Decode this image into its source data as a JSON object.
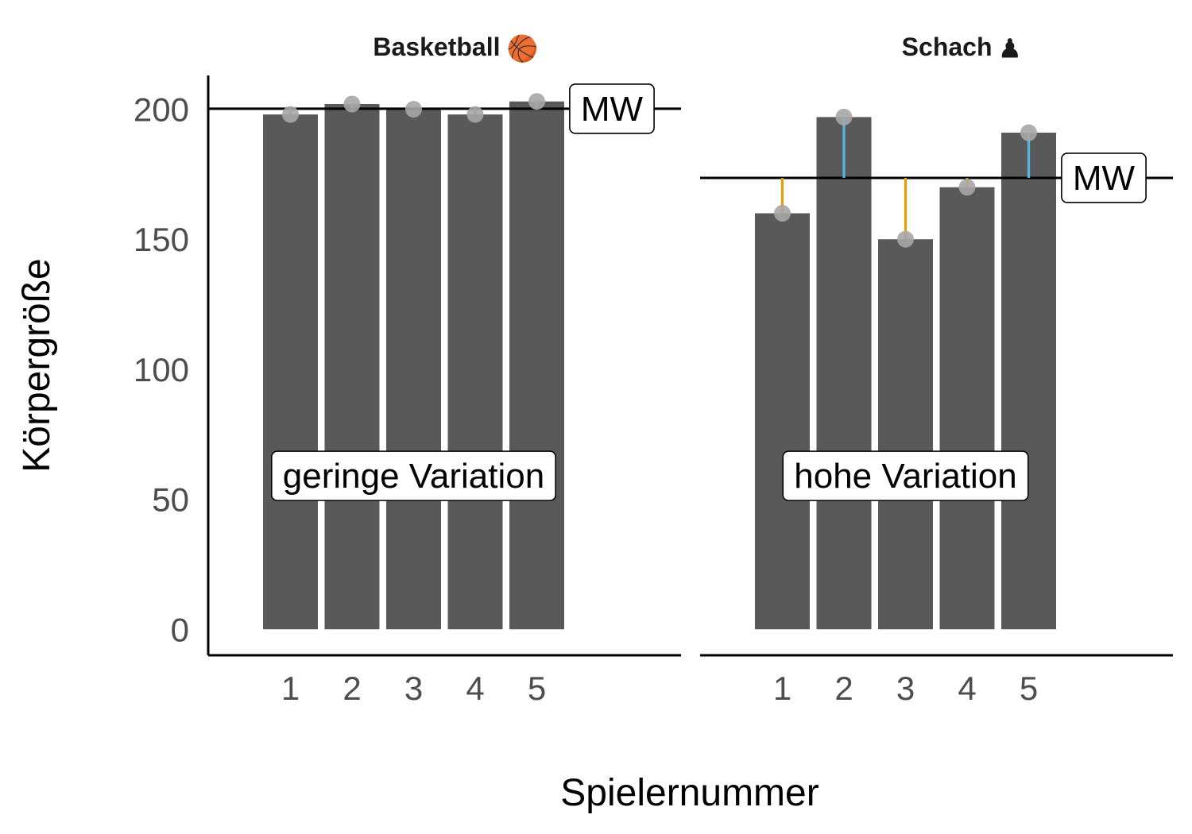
{
  "chart_data": {
    "type": "bar",
    "xlabel": "Spielernummer",
    "ylabel": "Körpergröße",
    "ylim": [
      -10,
      213
    ],
    "yticks": [
      0,
      50,
      100,
      150,
      200
    ],
    "categories": [
      "1",
      "2",
      "3",
      "4",
      "5"
    ],
    "mean_label": "MW",
    "colors": {
      "bar": "#595959",
      "point": "#a6a6a6",
      "below_mean": "#E69F00",
      "above_mean": "#56B4E9",
      "line": "#000000"
    },
    "panels": [
      {
        "title": "Basketball",
        "icon": "basketball-icon",
        "icon_glyph": "🏀",
        "values": [
          198,
          202,
          200,
          198,
          203
        ],
        "mean": 200.2,
        "annotation": "geringe Variation"
      },
      {
        "title": "Schach",
        "icon": "chess-pawn-icon",
        "icon_glyph": "♟",
        "values": [
          160,
          197,
          150,
          170,
          191
        ],
        "mean": 173.6,
        "annotation": "hohe Variation"
      }
    ]
  }
}
